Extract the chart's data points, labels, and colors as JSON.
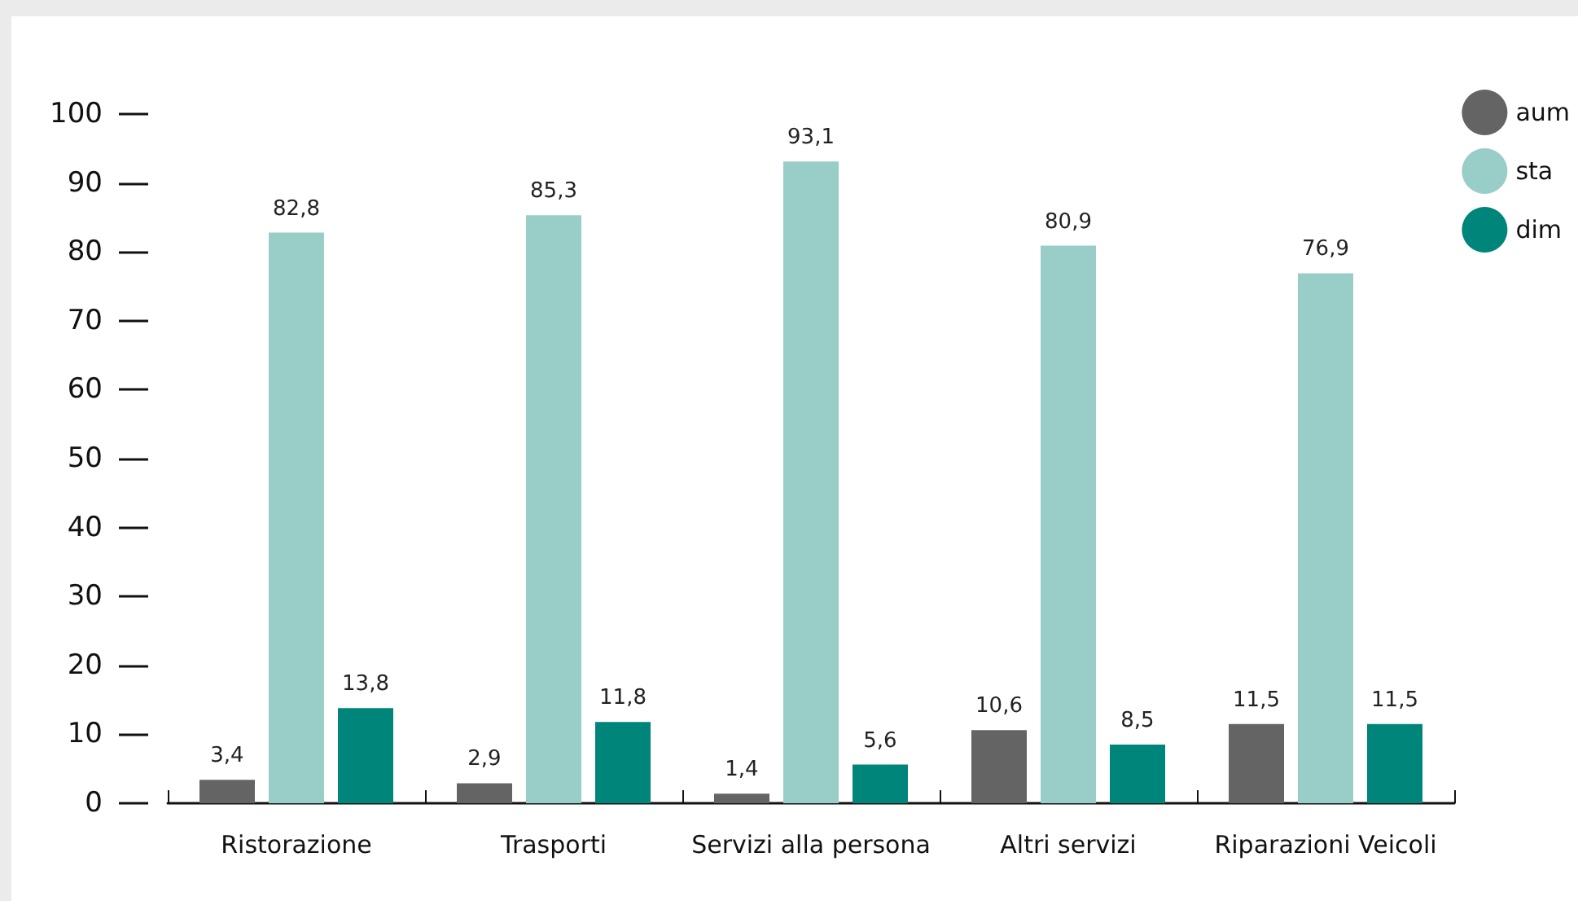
{
  "chart_data": {
    "type": "bar",
    "categories": [
      "Ristorazione",
      "Trasporti",
      "Servizi alla persona",
      "Altri servizi",
      "Riparazioni Veicoli"
    ],
    "series": [
      {
        "name": "aum",
        "color": "#646464",
        "values": [
          3.4,
          2.9,
          1.4,
          10.6,
          11.5
        ],
        "value_labels": [
          "3,4",
          "2,9",
          "1,4",
          "10,6",
          "11,5"
        ]
      },
      {
        "name": "sta",
        "color": "#99cdc8",
        "values": [
          82.8,
          85.3,
          93.1,
          80.9,
          76.9
        ],
        "value_labels": [
          "82,8",
          "85,3",
          "93,1",
          "80,9",
          "76,9"
        ]
      },
      {
        "name": "dim",
        "color": "#00857a",
        "values": [
          13.8,
          11.8,
          5.6,
          8.5,
          11.5
        ],
        "value_labels": [
          "13,8",
          "11,8",
          "5,6",
          "8,5",
          "11,5"
        ]
      }
    ],
    "ylim": [
      0,
      100
    ],
    "yticks": [
      0,
      10,
      20,
      30,
      40,
      50,
      60,
      70,
      80,
      90,
      100
    ],
    "grid": false,
    "legend": "top right"
  }
}
